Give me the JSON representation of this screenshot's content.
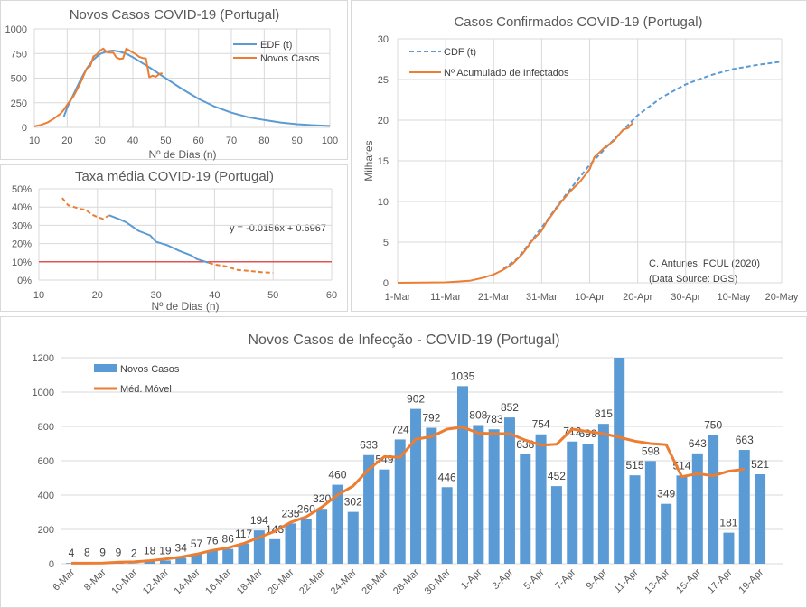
{
  "colors": {
    "blue": "#5b9bd5",
    "orange": "#ed7d31",
    "red": "#e02020",
    "grid": "#d9d9d9"
  },
  "chart_data": [
    {
      "type": "line",
      "title": "Novos Casos COVID-19 (Portugal)",
      "xlabel": "Nº de Dias (n)",
      "xlim": [
        10,
        100
      ],
      "ylim": [
        0,
        1000
      ],
      "x_ticks": [
        "10",
        "20",
        "30",
        "40",
        "50",
        "60",
        "70",
        "80",
        "90",
        "100"
      ],
      "y_ticks": [
        "0",
        "250",
        "500",
        "750",
        "1000"
      ],
      "grid": true,
      "legend": "top-right",
      "series": [
        {
          "name": "EDF (t)",
          "color": "#5b9bd5",
          "points": [
            [
              19,
              110
            ],
            [
              20,
              200
            ],
            [
              22,
              340
            ],
            [
              24,
              480
            ],
            [
              26,
              600
            ],
            [
              28,
              690
            ],
            [
              30,
              745
            ],
            [
              32,
              772
            ],
            [
              34,
              780
            ],
            [
              36,
              770
            ],
            [
              38,
              748
            ],
            [
              40,
              712
            ],
            [
              42,
              672
            ],
            [
              45,
              610
            ],
            [
              50,
              500
            ],
            [
              55,
              390
            ],
            [
              60,
              290
            ],
            [
              65,
              210
            ],
            [
              70,
              150
            ],
            [
              75,
              105
            ],
            [
              80,
              75
            ],
            [
              85,
              50
            ],
            [
              90,
              32
            ],
            [
              95,
              22
            ],
            [
              100,
              15
            ]
          ]
        },
        {
          "name": "Novos Casos",
          "color": "#ed7d31",
          "points": [
            [
              10,
              10
            ],
            [
              12,
              25
            ],
            [
              14,
              50
            ],
            [
              16,
              90
            ],
            [
              18,
              140
            ],
            [
              19,
              180
            ],
            [
              20,
              230
            ],
            [
              22,
              320
            ],
            [
              24,
              450
            ],
            [
              26,
              600
            ],
            [
              27,
              620
            ],
            [
              28,
              720
            ],
            [
              29,
              740
            ],
            [
              30,
              780
            ],
            [
              31,
              800
            ],
            [
              32,
              765
            ],
            [
              33,
              760
            ],
            [
              34,
              760
            ],
            [
              35,
              710
            ],
            [
              36,
              695
            ],
            [
              37,
              700
            ],
            [
              38,
              800
            ],
            [
              39,
              780
            ],
            [
              40,
              760
            ],
            [
              41,
              740
            ],
            [
              42,
              715
            ],
            [
              43,
              705
            ],
            [
              44,
              700
            ],
            [
              45,
              510
            ],
            [
              46,
              525
            ],
            [
              47,
              515
            ],
            [
              48,
              540
            ],
            [
              49,
              550
            ]
          ]
        }
      ]
    },
    {
      "type": "line",
      "title": "Taxa média COVID-19 (Portugal)",
      "xlabel": "Nº de Dias (n)",
      "xlim": [
        10,
        60
      ],
      "ylim": [
        0,
        50
      ],
      "x_ticks": [
        "10",
        "20",
        "30",
        "40",
        "50",
        "60"
      ],
      "y_ticks": [
        "0%",
        "10%",
        "20%",
        "30%",
        "40%",
        "50%"
      ],
      "grid": true,
      "annotation": "y = -0.0156x + 0.6967",
      "threshold": 10,
      "series": [
        {
          "style": "dashed",
          "color": "#ed7d31",
          "points": [
            [
              14,
              45
            ],
            [
              15,
              41
            ],
            [
              17,
              39
            ],
            [
              18,
              38.5
            ],
            [
              19,
              36
            ],
            [
              20,
              34.5
            ],
            [
              21,
              33.5
            ],
            [
              22,
              35.5
            ]
          ]
        },
        {
          "style": "solid",
          "color": "#5b9bd5",
          "points": [
            [
              22,
              35.5
            ],
            [
              24,
              33
            ],
            [
              25,
              31.5
            ],
            [
              27,
              27
            ],
            [
              29,
              24.5
            ],
            [
              30,
              21
            ],
            [
              32,
              19
            ],
            [
              34,
              16
            ],
            [
              36,
              13.5
            ],
            [
              37,
              11.5
            ],
            [
              39,
              9.5
            ]
          ]
        },
        {
          "style": "dashed",
          "color": "#ed7d31",
          "points": [
            [
              39,
              9.5
            ],
            [
              40,
              8.5
            ],
            [
              42,
              7.5
            ],
            [
              44,
              5.5
            ],
            [
              46,
              5
            ],
            [
              48,
              4.3
            ],
            [
              50,
              4
            ]
          ]
        }
      ]
    },
    {
      "type": "line",
      "title": "Casos Confirmados COVID-19 (Portugal)",
      "ylabel": "Milhares",
      "ylim": [
        0,
        30
      ],
      "x_ticks": [
        "1-Mar",
        "11-Mar",
        "21-Mar",
        "31-Mar",
        "10-Apr",
        "20-Apr",
        "30-Apr",
        "10-May",
        "20-May"
      ],
      "y_ticks": [
        "0",
        "5",
        "10",
        "15",
        "20",
        "25",
        "30"
      ],
      "grid": true,
      "legend": "top-left",
      "annotation": [
        "C. Antunes, FCUL (2020)",
        "(Data Source: DGS)"
      ],
      "series": [
        {
          "name": "CDF (t)",
          "style": "dashed",
          "color": "#5b9bd5",
          "points": [
            [
              "23-Mar",
              1.7
            ],
            [
              "26-Mar",
              3
            ],
            [
              "31-Mar",
              6.8
            ],
            [
              "5-Apr",
              10.8
            ],
            [
              "10-Apr",
              14.5
            ],
            [
              "15-Apr",
              17.6
            ],
            [
              "20-Apr",
              20.6
            ],
            [
              "25-Apr",
              22.8
            ],
            [
              "30-Apr",
              24.4
            ],
            [
              "5-May",
              25.5
            ],
            [
              "10-May",
              26.3
            ],
            [
              "15-May",
              26.8
            ],
            [
              "20-May",
              27.2
            ]
          ]
        },
        {
          "name": "Nº Acumulado de Infectados",
          "style": "solid",
          "color": "#ed7d31",
          "points": [
            [
              "1-Mar",
              0
            ],
            [
              "11-Mar",
              0.06
            ],
            [
              "16-Mar",
              0.25
            ],
            [
              "19-Mar",
              0.64
            ],
            [
              "21-Mar",
              1.02
            ],
            [
              "23-Mar",
              1.6
            ],
            [
              "25-Mar",
              2.36
            ],
            [
              "27-Mar",
              3.54
            ],
            [
              "29-Mar",
              5.17
            ],
            [
              "31-Mar",
              6.41
            ],
            [
              "1-Apr",
              7.44
            ],
            [
              "2-Apr",
              8.25
            ],
            [
              "4-Apr",
              9.89
            ],
            [
              "6-Apr",
              11.28
            ],
            [
              "8-Apr",
              12.44
            ],
            [
              "10-Apr",
              13.96
            ],
            [
              "11-Apr",
              15.47
            ],
            [
              "13-Apr",
              16.58
            ],
            [
              "15-Apr",
              17.45
            ],
            [
              "17-Apr",
              18.84
            ],
            [
              "18-Apr",
              19.02
            ],
            [
              "19-Apr",
              19.68
            ]
          ]
        }
      ]
    },
    {
      "type": "bar",
      "title": "Novos Casos de Infecção - COVID-19 (Portugal)",
      "ylim": [
        0,
        1200
      ],
      "y_ticks": [
        "0",
        "200",
        "400",
        "600",
        "800",
        "1000",
        "1200"
      ],
      "x_tick_labels": [
        "6-Mar",
        "8-Mar",
        "10-Mar",
        "12-Mar",
        "14-Mar",
        "16-Mar",
        "18-Mar",
        "20-Mar",
        "22-Mar",
        "24-Mar",
        "26-Mar",
        "28-Mar",
        "30-Mar",
        "1-Apr",
        "3-Apr",
        "5-Apr",
        "7-Apr",
        "9-Apr",
        "11-Apr",
        "13-Apr",
        "15-Apr",
        "17-Apr",
        "19-Apr"
      ],
      "grid": true,
      "legend": "top-left",
      "series": [
        {
          "name": "Novos Casos",
          "color": "#5b9bd5",
          "values": [
            4,
            8,
            9,
            9,
            2,
            18,
            19,
            34,
            57,
            76,
            86,
            117,
            194,
            143,
            235,
            260,
            320,
            460,
            302,
            633,
            549,
            724,
            902,
            792,
            446,
            1035,
            808,
            783,
            852,
            638,
            754,
            452,
            712,
            699,
            815,
            1200,
            515,
            598,
            349,
            514,
            643,
            750,
            181,
            663,
            521
          ],
          "labels": [
            "4",
            "8",
            "9",
            "9",
            "2",
            "18",
            "19",
            "34",
            "57",
            "76",
            "86",
            "117",
            "194",
            "143",
            "235",
            "260",
            "320",
            "460",
            "302",
            "633",
            "549",
            "724",
            "902",
            "792",
            "446",
            "1035",
            "808",
            "783",
            "852",
            "638",
            "754",
            "452",
            "712",
            "699",
            "815",
            null,
            "515",
            "598",
            "349",
            "514",
            "643",
            "750",
            "181",
            "663",
            "521"
          ]
        },
        {
          "name": "Méd. Móvel",
          "color": "#ed7d31",
          "values": [
            3,
            3,
            4,
            9,
            11,
            18,
            28,
            39,
            56,
            78,
            92,
            118,
            153,
            189,
            241,
            273,
            330,
            400,
            453,
            550,
            624,
            620,
            726,
            740,
            784,
            796,
            761,
            758,
            758,
            720,
            691,
            696,
            784,
            770,
            758,
            737,
            714,
            700,
            693,
            507,
            525,
            512,
            539,
            551,
            null
          ]
        }
      ]
    }
  ]
}
